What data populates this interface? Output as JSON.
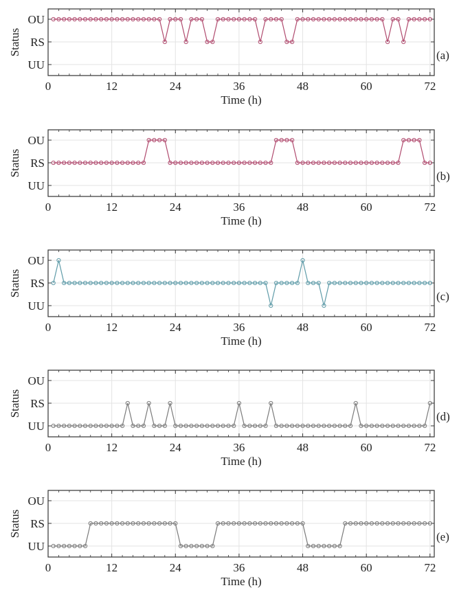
{
  "chart_data": [
    {
      "type": "line",
      "panel_label": "(a)",
      "xlabel": "Time (h)",
      "ylabel": "Status",
      "xlim": [
        0,
        72.8
      ],
      "xticks": [
        0,
        12,
        24,
        36,
        48,
        60,
        72
      ],
      "yticks": [
        "UU",
        "RS",
        "OU"
      ],
      "grid": true,
      "color": "#b04a6e",
      "series": [
        {
          "x": [
            1,
            2,
            3,
            4,
            5,
            6,
            7,
            8,
            9,
            10,
            11,
            12,
            13,
            14,
            15,
            16,
            17,
            18,
            19,
            20,
            21,
            22,
            23,
            24,
            25,
            26,
            27,
            28,
            29,
            30,
            31,
            32,
            33,
            34,
            35,
            36,
            37,
            38,
            39,
            40,
            41,
            42,
            43,
            44,
            45,
            46,
            47,
            48,
            49,
            50,
            51,
            52,
            53,
            54,
            55,
            56,
            57,
            58,
            59,
            60,
            61,
            62,
            63,
            64,
            65,
            66,
            67,
            68,
            69,
            70,
            71,
            72
          ],
          "y": [
            "OU",
            "OU",
            "OU",
            "OU",
            "OU",
            "OU",
            "OU",
            "OU",
            "OU",
            "OU",
            "OU",
            "OU",
            "OU",
            "OU",
            "OU",
            "OU",
            "OU",
            "OU",
            "OU",
            "OU",
            "OU",
            "RS",
            "OU",
            "OU",
            "OU",
            "RS",
            "OU",
            "OU",
            "OU",
            "RS",
            "RS",
            "OU",
            "OU",
            "OU",
            "OU",
            "OU",
            "OU",
            "OU",
            "OU",
            "RS",
            "OU",
            "OU",
            "OU",
            "OU",
            "RS",
            "RS",
            "OU",
            "OU",
            "OU",
            "OU",
            "OU",
            "OU",
            "OU",
            "OU",
            "OU",
            "OU",
            "OU",
            "OU",
            "OU",
            "OU",
            "OU",
            "OU",
            "OU",
            "RS",
            "OU",
            "OU",
            "RS",
            "OU",
            "OU",
            "OU",
            "OU",
            "OU"
          ]
        }
      ]
    },
    {
      "type": "line",
      "panel_label": "(b)",
      "xlabel": "Time (h)",
      "ylabel": "Status",
      "xlim": [
        0,
        72.8
      ],
      "xticks": [
        0,
        12,
        24,
        36,
        48,
        60,
        72
      ],
      "yticks": [
        "UU",
        "RS",
        "OU"
      ],
      "grid": true,
      "color": "#b04a6e",
      "series": [
        {
          "x": [
            1,
            2,
            3,
            4,
            5,
            6,
            7,
            8,
            9,
            10,
            11,
            12,
            13,
            14,
            15,
            16,
            17,
            18,
            19,
            20,
            21,
            22,
            23,
            24,
            25,
            26,
            27,
            28,
            29,
            30,
            31,
            32,
            33,
            34,
            35,
            36,
            37,
            38,
            39,
            40,
            41,
            42,
            43,
            44,
            45,
            46,
            47,
            48,
            49,
            50,
            51,
            52,
            53,
            54,
            55,
            56,
            57,
            58,
            59,
            60,
            61,
            62,
            63,
            64,
            65,
            66,
            67,
            68,
            69,
            70,
            71,
            72
          ],
          "y": [
            "RS",
            "RS",
            "RS",
            "RS",
            "RS",
            "RS",
            "RS",
            "RS",
            "RS",
            "RS",
            "RS",
            "RS",
            "RS",
            "RS",
            "RS",
            "RS",
            "RS",
            "RS",
            "OU",
            "OU",
            "OU",
            "OU",
            "RS",
            "RS",
            "RS",
            "RS",
            "RS",
            "RS",
            "RS",
            "RS",
            "RS",
            "RS",
            "RS",
            "RS",
            "RS",
            "RS",
            "RS",
            "RS",
            "RS",
            "RS",
            "RS",
            "RS",
            "OU",
            "OU",
            "OU",
            "OU",
            "RS",
            "RS",
            "RS",
            "RS",
            "RS",
            "RS",
            "RS",
            "RS",
            "RS",
            "RS",
            "RS",
            "RS",
            "RS",
            "RS",
            "RS",
            "RS",
            "RS",
            "RS",
            "RS",
            "RS",
            "OU",
            "OU",
            "OU",
            "OU",
            "RS",
            "RS"
          ]
        }
      ]
    },
    {
      "type": "line",
      "panel_label": "(c)",
      "xlabel": "Time (h)",
      "ylabel": "Status",
      "xlim": [
        0,
        72.8
      ],
      "xticks": [
        0,
        12,
        24,
        36,
        48,
        60,
        72
      ],
      "yticks": [
        "UU",
        "RS",
        "OU"
      ],
      "grid": true,
      "color": "#5e9ba8",
      "series": [
        {
          "x": [
            1,
            2,
            3,
            4,
            5,
            6,
            7,
            8,
            9,
            10,
            11,
            12,
            13,
            14,
            15,
            16,
            17,
            18,
            19,
            20,
            21,
            22,
            23,
            24,
            25,
            26,
            27,
            28,
            29,
            30,
            31,
            32,
            33,
            34,
            35,
            36,
            37,
            38,
            39,
            40,
            41,
            42,
            43,
            44,
            45,
            46,
            47,
            48,
            49,
            50,
            51,
            52,
            53,
            54,
            55,
            56,
            57,
            58,
            59,
            60,
            61,
            62,
            63,
            64,
            65,
            66,
            67,
            68,
            69,
            70,
            71,
            72
          ],
          "y": [
            "RS",
            "OU",
            "RS",
            "RS",
            "RS",
            "RS",
            "RS",
            "RS",
            "RS",
            "RS",
            "RS",
            "RS",
            "RS",
            "RS",
            "RS",
            "RS",
            "RS",
            "RS",
            "RS",
            "RS",
            "RS",
            "RS",
            "RS",
            "RS",
            "RS",
            "RS",
            "RS",
            "RS",
            "RS",
            "RS",
            "RS",
            "RS",
            "RS",
            "RS",
            "RS",
            "RS",
            "RS",
            "RS",
            "RS",
            "RS",
            "RS",
            "UU",
            "RS",
            "RS",
            "RS",
            "RS",
            "RS",
            "OU",
            "RS",
            "RS",
            "RS",
            "UU",
            "RS",
            "RS",
            "RS",
            "RS",
            "RS",
            "RS",
            "RS",
            "RS",
            "RS",
            "RS",
            "RS",
            "RS",
            "RS",
            "RS",
            "RS",
            "RS",
            "RS",
            "RS",
            "RS",
            "RS"
          ]
        }
      ]
    },
    {
      "type": "line",
      "panel_label": "(d)",
      "xlabel": "Time (h)",
      "ylabel": "Status",
      "xlim": [
        0,
        72.8
      ],
      "xticks": [
        0,
        12,
        24,
        36,
        48,
        60,
        72
      ],
      "yticks": [
        "UU",
        "RS",
        "OU"
      ],
      "grid": true,
      "color": "#7a7a7a",
      "series": [
        {
          "x": [
            1,
            2,
            3,
            4,
            5,
            6,
            7,
            8,
            9,
            10,
            11,
            12,
            13,
            14,
            15,
            16,
            17,
            18,
            19,
            20,
            21,
            22,
            23,
            24,
            25,
            26,
            27,
            28,
            29,
            30,
            31,
            32,
            33,
            34,
            35,
            36,
            37,
            38,
            39,
            40,
            41,
            42,
            43,
            44,
            45,
            46,
            47,
            48,
            49,
            50,
            51,
            52,
            53,
            54,
            55,
            56,
            57,
            58,
            59,
            60,
            61,
            62,
            63,
            64,
            65,
            66,
            67,
            68,
            69,
            70,
            71,
            72
          ],
          "y": [
            "UU",
            "UU",
            "UU",
            "UU",
            "UU",
            "UU",
            "UU",
            "UU",
            "UU",
            "UU",
            "UU",
            "UU",
            "UU",
            "UU",
            "RS",
            "UU",
            "UU",
            "UU",
            "RS",
            "UU",
            "UU",
            "UU",
            "RS",
            "UU",
            "UU",
            "UU",
            "UU",
            "UU",
            "UU",
            "UU",
            "UU",
            "UU",
            "UU",
            "UU",
            "UU",
            "RS",
            "UU",
            "UU",
            "UU",
            "UU",
            "UU",
            "RS",
            "UU",
            "UU",
            "UU",
            "UU",
            "UU",
            "UU",
            "UU",
            "UU",
            "UU",
            "UU",
            "UU",
            "UU",
            "UU",
            "UU",
            "UU",
            "RS",
            "UU",
            "UU",
            "UU",
            "UU",
            "UU",
            "UU",
            "UU",
            "UU",
            "UU",
            "UU",
            "UU",
            "UU",
            "UU",
            "RS"
          ]
        }
      ]
    },
    {
      "type": "line",
      "panel_label": "(e)",
      "xlabel": "Time (h)",
      "ylabel": "Status",
      "xlim": [
        0,
        72.8
      ],
      "xticks": [
        0,
        12,
        24,
        36,
        48,
        60,
        72
      ],
      "yticks": [
        "UU",
        "RS",
        "OU"
      ],
      "grid": true,
      "color": "#7a7a7a",
      "series": [
        {
          "x": [
            1,
            2,
            3,
            4,
            5,
            6,
            7,
            8,
            9,
            10,
            11,
            12,
            13,
            14,
            15,
            16,
            17,
            18,
            19,
            20,
            21,
            22,
            23,
            24,
            25,
            26,
            27,
            28,
            29,
            30,
            31,
            32,
            33,
            34,
            35,
            36,
            37,
            38,
            39,
            40,
            41,
            42,
            43,
            44,
            45,
            46,
            47,
            48,
            49,
            50,
            51,
            52,
            53,
            54,
            55,
            56,
            57,
            58,
            59,
            60,
            61,
            62,
            63,
            64,
            65,
            66,
            67,
            68,
            69,
            70,
            71,
            72
          ],
          "y": [
            "UU",
            "UU",
            "UU",
            "UU",
            "UU",
            "UU",
            "UU",
            "RS",
            "RS",
            "RS",
            "RS",
            "RS",
            "RS",
            "RS",
            "RS",
            "RS",
            "RS",
            "RS",
            "RS",
            "RS",
            "RS",
            "RS",
            "RS",
            "RS",
            "UU",
            "UU",
            "UU",
            "UU",
            "UU",
            "UU",
            "UU",
            "RS",
            "RS",
            "RS",
            "RS",
            "RS",
            "RS",
            "RS",
            "RS",
            "RS",
            "RS",
            "RS",
            "RS",
            "RS",
            "RS",
            "RS",
            "RS",
            "RS",
            "UU",
            "UU",
            "UU",
            "UU",
            "UU",
            "UU",
            "UU",
            "RS",
            "RS",
            "RS",
            "RS",
            "RS",
            "RS",
            "RS",
            "RS",
            "RS",
            "RS",
            "RS",
            "RS",
            "RS",
            "RS",
            "RS",
            "RS",
            "RS"
          ]
        }
      ]
    }
  ]
}
